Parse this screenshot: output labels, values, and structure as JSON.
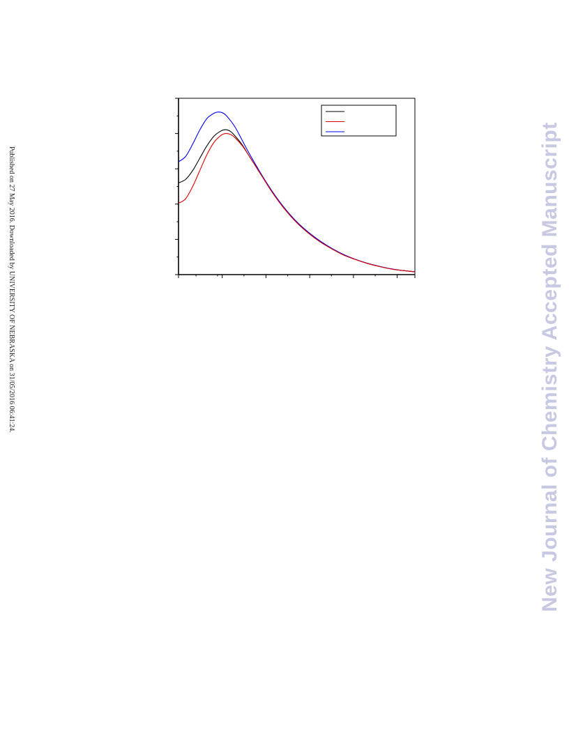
{
  "side_note": "Published on 27 May 2016. Downloaded by UNIVERSITY OF NEBRASKA on 31/05/2016 06:41:24.",
  "watermark": "New Journal of Chemistry Accepted Manuscript",
  "colors": {
    "series_1": "#000000",
    "series_2": "#e00000",
    "series_3": "#0000ee"
  },
  "chart_data": {
    "type": "line",
    "title": "",
    "xlabel": "",
    "ylabel": "",
    "xlim": [
      0,
      100
    ],
    "ylim": [
      0,
      100
    ],
    "grid": false,
    "legend_placement": "top-right",
    "x_major_ticks": [
      0,
      18.5,
      37,
      55.5,
      74,
      92.5
    ],
    "x_minor_ticks": [
      7.4,
      16.5,
      27.7,
      46.2,
      64.7,
      83.2
    ],
    "y_major_ticks": [
      0,
      20,
      40,
      60,
      80,
      100
    ],
    "y_minor_ticks": [
      10,
      30,
      50,
      70,
      90
    ],
    "series": [
      {
        "color": "#000000",
        "x": [
          0,
          3,
          6,
          9,
          12,
          15,
          18,
          20,
          22,
          24,
          27,
          30,
          35,
          40,
          45,
          50,
          55,
          60,
          65,
          70,
          75,
          80,
          85,
          90,
          95,
          100
        ],
        "y": [
          52,
          54,
          59,
          66,
          73,
          78.5,
          81.5,
          82.2,
          81.2,
          78.5,
          73.5,
          67,
          56.5,
          46,
          37,
          29.5,
          23.5,
          18.5,
          14.5,
          11,
          8.5,
          6.3,
          4.6,
          3.2,
          2.3,
          1.6
        ]
      },
      {
        "color": "#e00000",
        "x": [
          0,
          3,
          6,
          9,
          12,
          15,
          18,
          20,
          22,
          24,
          27,
          30,
          35,
          40,
          45,
          50,
          55,
          60,
          65,
          70,
          75,
          80,
          85,
          90,
          95,
          100
        ],
        "y": [
          40.5,
          43,
          50,
          59,
          68,
          75,
          79,
          80,
          79.5,
          77.5,
          73,
          67,
          56.5,
          46,
          37,
          29.5,
          23.5,
          18.5,
          14.5,
          11,
          8.5,
          6.3,
          4.6,
          3.2,
          2.3,
          1.6
        ]
      },
      {
        "color": "#0000ee",
        "x": [
          0,
          3,
          6,
          9,
          12,
          15,
          17,
          19,
          21,
          24,
          27,
          30,
          35,
          40,
          45,
          50,
          55,
          60,
          65,
          70,
          75,
          80,
          85,
          90,
          95,
          100
        ],
        "y": [
          64,
          67,
          74,
          82,
          88.5,
          91.5,
          92.2,
          91.5,
          89,
          83.5,
          76,
          68.5,
          57,
          46.5,
          37.5,
          30,
          24,
          19,
          14.8,
          11.3,
          8.6,
          6.4,
          4.7,
          3.3,
          2.3,
          1.6
        ]
      }
    ]
  }
}
